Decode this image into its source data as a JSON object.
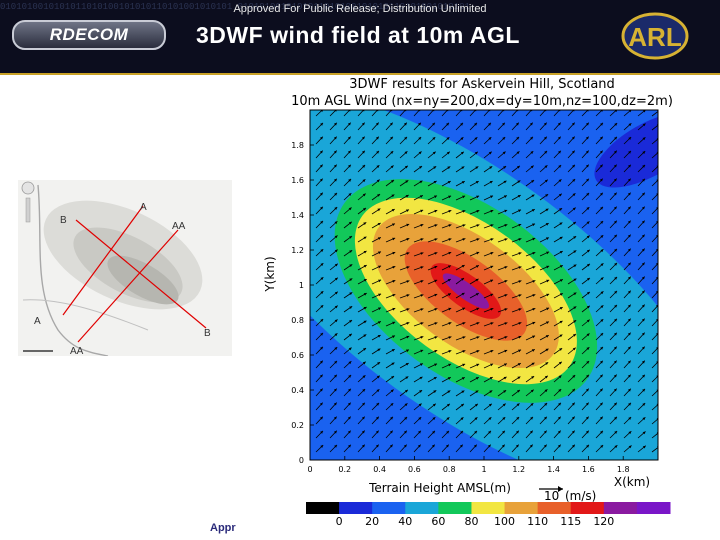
{
  "header": {
    "release_notice": "Approved For Public Release; Distribution Unlimited",
    "title": "3DWF wind field at 10m AGL",
    "left_logo": "RDECOM",
    "right_logo": "ARL",
    "binary_pattern": "0101010010101011010100101010110101001010101 0101010010101011010100101010110101001010101"
  },
  "map": {
    "labels": {
      "a_top": "A",
      "b_left": "B",
      "aa_right": "AA",
      "a_left": "A",
      "b_right": "B",
      "aa_bottom": "AA"
    }
  },
  "footer": {
    "text": "Appr"
  },
  "chart_data": {
    "type": "heatmap",
    "title": "3DWF results for Askervein Hill, Scotland",
    "subtitle": "10m AGL Wind (nx=ny=200,dx=dy=10m,nz=100,dz=2m)",
    "xlabel": "X(km)",
    "ylabel": "Y(km)",
    "xlim": [
      0,
      2
    ],
    "ylim": [
      0,
      2
    ],
    "xticks": [
      "0",
      "0.2",
      "0.4",
      "0.6",
      "0.8",
      "1",
      "1.2",
      "1.4",
      "1.6",
      "1.8"
    ],
    "yticks": [
      "0",
      "0.2",
      "0.4",
      "0.6",
      "0.8",
      "1",
      "1.2",
      "1.4",
      "1.6",
      "1.8"
    ],
    "colorbar_label": "Terrain Height AMSL(m)",
    "colorbar_ticks": [
      "0",
      "20",
      "40",
      "60",
      "80",
      "100",
      "110",
      "115",
      "120"
    ],
    "colorbar_colors": [
      "#000000",
      "#1a2ad8",
      "#1a62f0",
      "#1aa6d8",
      "#12c85a",
      "#f2e642",
      "#e8a23a",
      "#e8602a",
      "#e21818",
      "#8a1aa0",
      "#7a16c8"
    ],
    "reference_vector": {
      "value": "10",
      "units": "(m/s)"
    },
    "hill": {
      "peak_x": 0.85,
      "peak_y": 1.0
    },
    "wind_direction": "from southwest, flowing toward northeast"
  },
  "colors": {
    "header_bg": "#0c0d1e",
    "accent": "#c9a227"
  }
}
